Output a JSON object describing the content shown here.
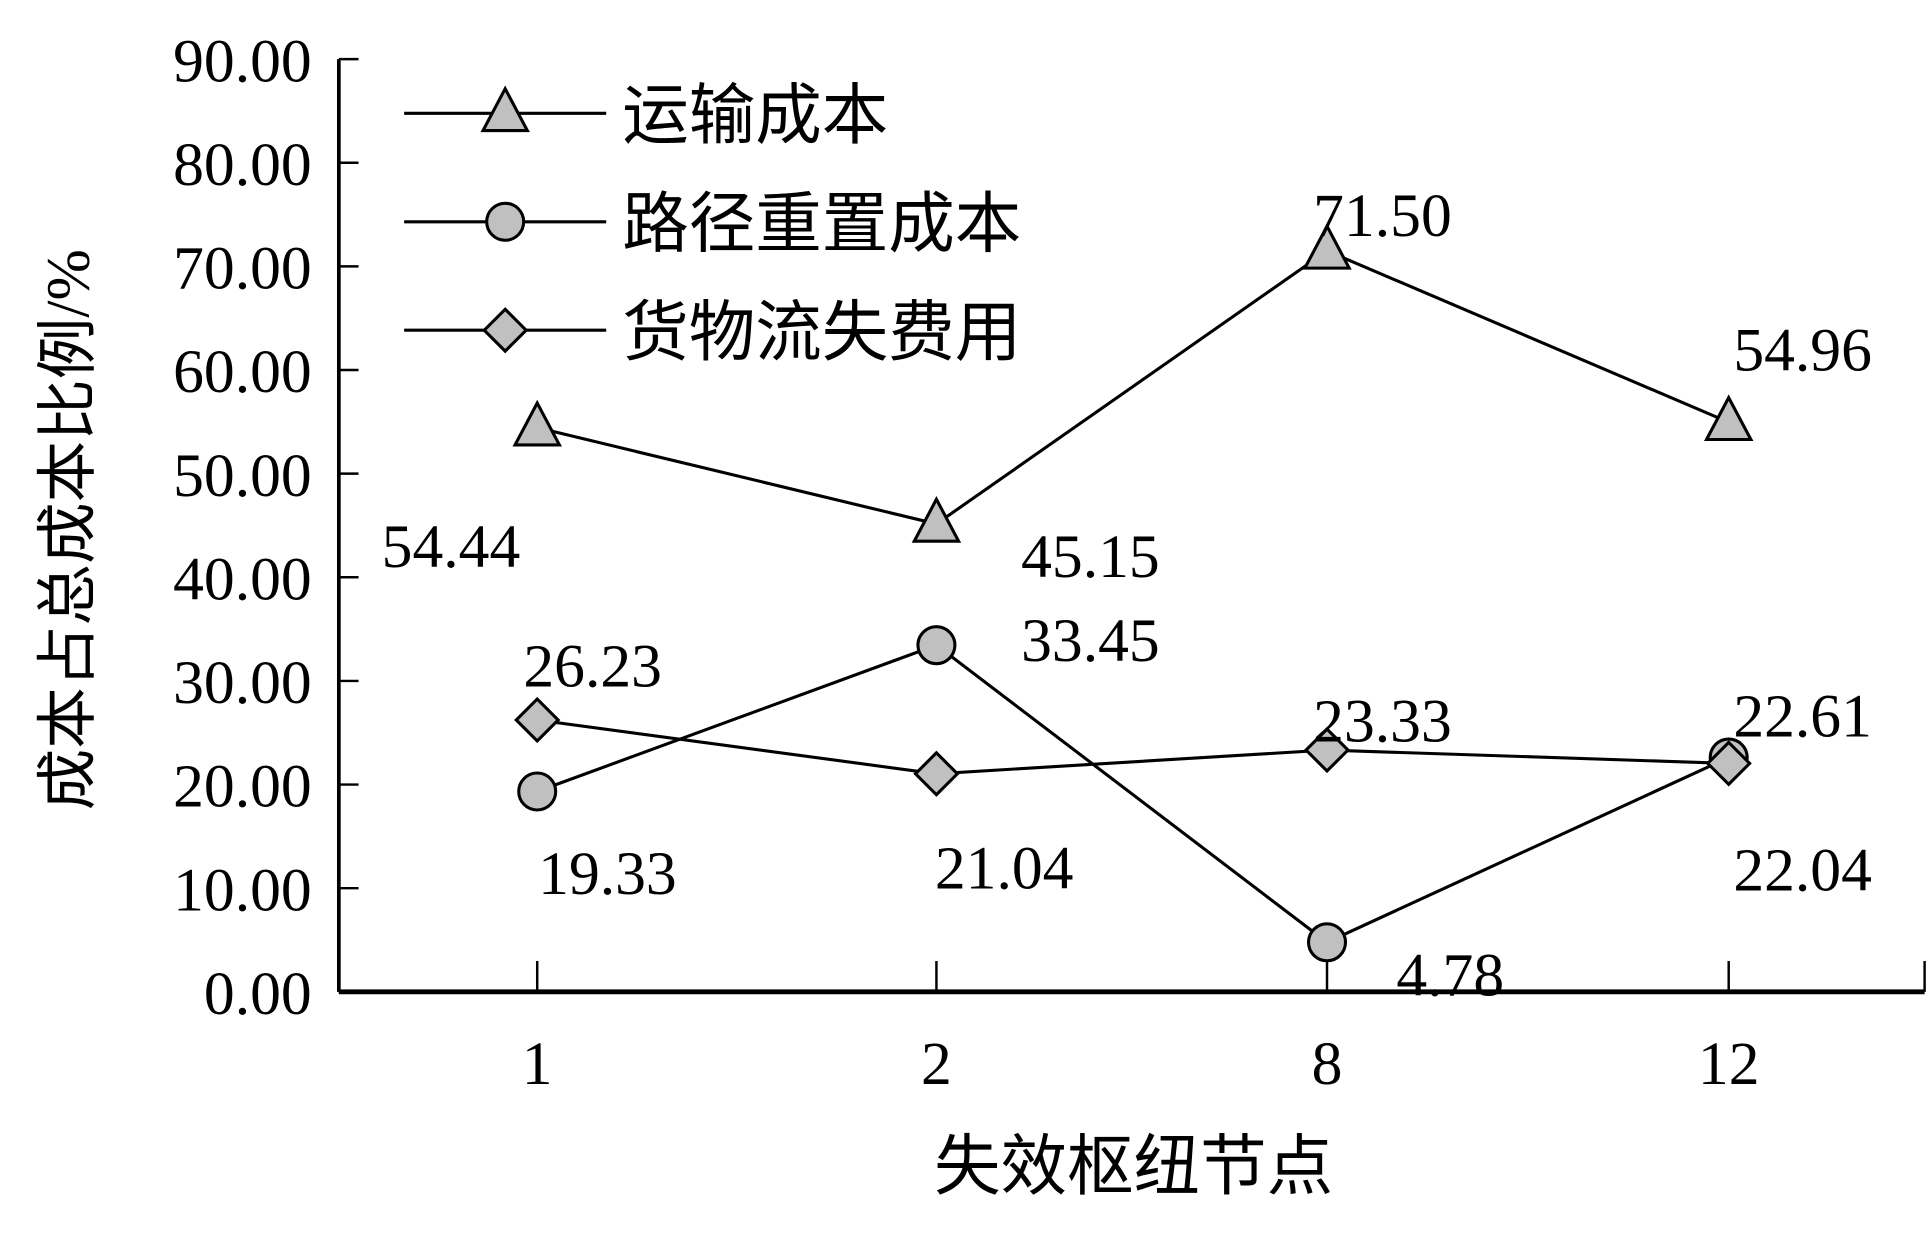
{
  "chart_data": {
    "type": "line",
    "xlabel": "失效枢纽节点",
    "ylabel": "成本占总成本比例/%",
    "categories": [
      "1",
      "2",
      "8",
      "12"
    ],
    "ylim": [
      0,
      90
    ],
    "yticks": [
      "0.00",
      "10.00",
      "20.00",
      "30.00",
      "40.00",
      "50.00",
      "60.00",
      "70.00",
      "80.00",
      "90.00"
    ],
    "grid": false,
    "legend_position": "top-left",
    "series": [
      {
        "name": "运输成本",
        "marker": "triangle",
        "values": [
          54.44,
          45.15,
          71.5,
          54.96
        ],
        "labels": [
          "54.44",
          "45.15",
          "71.50",
          "54.96"
        ]
      },
      {
        "name": "路径重置成本",
        "marker": "circle",
        "values": [
          19.33,
          33.45,
          4.78,
          22.61
        ],
        "labels": [
          "19.33",
          "33.45",
          "4.78",
          "22.61"
        ]
      },
      {
        "name": "货物流失费用",
        "marker": "diamond",
        "values": [
          26.23,
          21.04,
          23.33,
          22.04
        ],
        "labels": [
          "26.23",
          "21.04",
          "23.33",
          "22.04"
        ]
      }
    ],
    "colors": {
      "line": "#000000",
      "marker_fill": "#c0c0c0"
    }
  }
}
